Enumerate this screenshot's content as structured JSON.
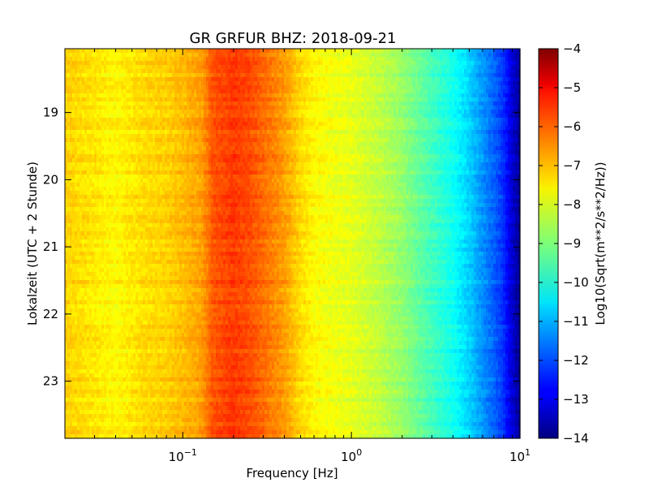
{
  "chart_data": {
    "type": "heatmap",
    "title": "GR GRFUR BHZ: 2018-09-21",
    "xlabel": "Frequency [Hz]",
    "ylabel": "Lokalzeit (UTC + 2 Stunde)",
    "colorbar_label": "Log10(Sqrt(m**2/s**2/Hz))",
    "x_scale": "log",
    "xlim": [
      0.02,
      10
    ],
    "x_ticks": [
      {
        "value": 0.1,
        "base": "10",
        "exp": "−1"
      },
      {
        "value": 1,
        "base": "10",
        "exp": "0"
      },
      {
        "value": 10,
        "base": "10",
        "exp": "1"
      }
    ],
    "ylim": [
      18.05,
      23.85
    ],
    "y_inverted": true,
    "y_ticks": [
      19,
      20,
      21,
      22,
      23
    ],
    "colorbar_range": [
      -14,
      -4
    ],
    "colorbar_ticks": [
      -4,
      -5,
      -6,
      -7,
      -8,
      -9,
      -10,
      -11,
      -12,
      -13,
      -14
    ],
    "colormap": "jet",
    "spectrum_profile": {
      "frequency_hz": [
        0.02,
        0.04,
        0.06,
        0.08,
        0.1,
        0.13,
        0.15,
        0.2,
        0.25,
        0.3,
        0.4,
        0.5,
        0.6,
        0.8,
        1.0,
        1.5,
        2.0,
        3.0,
        4.0,
        5.0,
        6.0,
        7.0,
        8.0,
        9.0,
        10.0
      ],
      "log10_amplitude": [
        -7.3,
        -7.7,
        -7.4,
        -7.3,
        -7.1,
        -6.8,
        -6.1,
        -5.8,
        -6.0,
        -6.3,
        -6.8,
        -7.4,
        -7.7,
        -7.9,
        -8.0,
        -8.4,
        -8.8,
        -9.6,
        -10.1,
        -10.7,
        -11.3,
        -11.8,
        -12.3,
        -13.2,
        -13.8
      ]
    }
  }
}
